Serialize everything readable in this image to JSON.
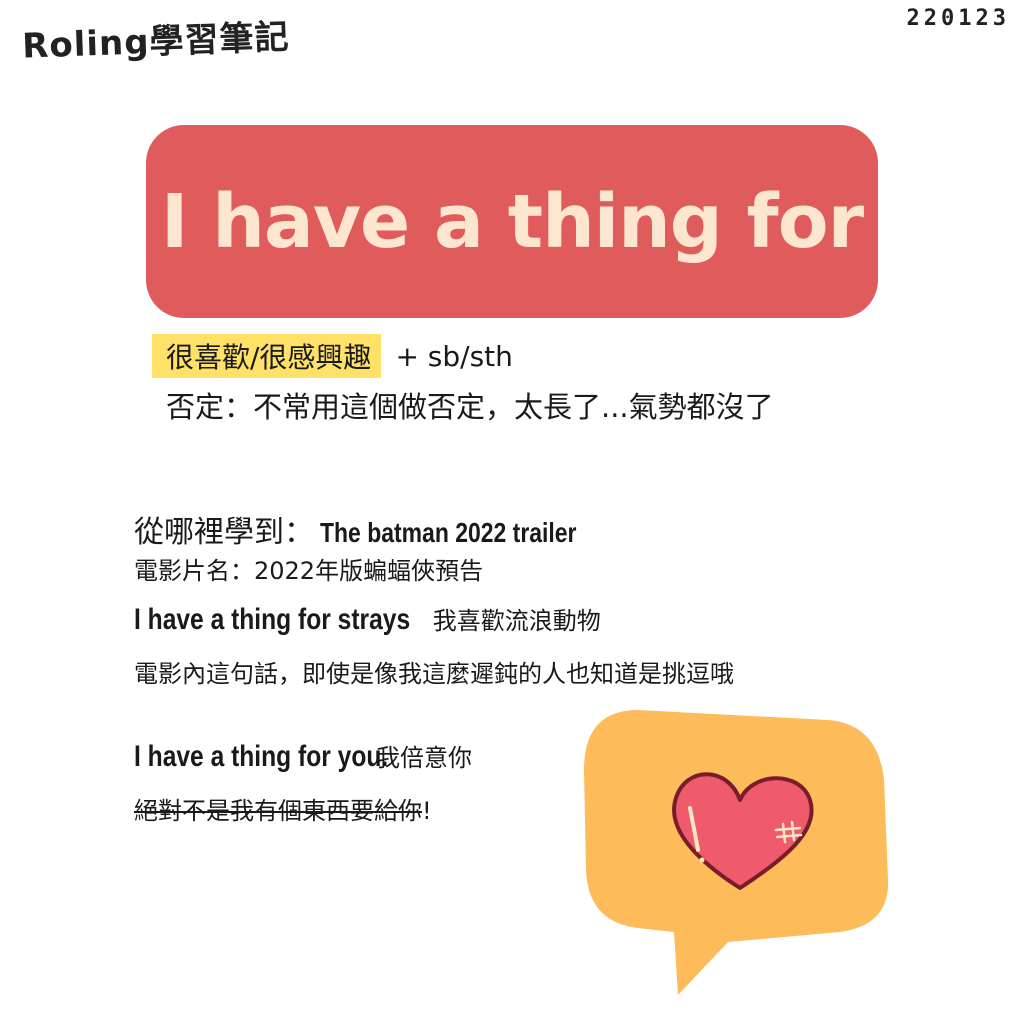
{
  "header": {
    "brand": "Roling學習筆記",
    "date": "220123"
  },
  "title": "I  have a thing for",
  "meaning": {
    "highlight": "很喜歡/很感興趣",
    "plus": "+ sb/sth",
    "negation": "否定：不常用這個做否定，太長了...氣勢都沒了"
  },
  "source": {
    "label": "從哪裡學到：",
    "value": "The batman 2022 trailer",
    "movie_name": "電影片名：2022年版蝙蝠俠預告"
  },
  "examples": [
    {
      "en": "I have a thing for strays",
      "zh": "我喜歡流浪動物"
    },
    {
      "en": "I have a thing for you.",
      "zh": "我倍意你"
    }
  ],
  "note": "電影內這句話，即使是像我這麼遲鈍的人也知道是挑逗哦",
  "not_meaning": {
    "struck": "絕對不是我有個東西要給你",
    "tail": "!"
  },
  "colors": {
    "title_bg": "#e05c5c",
    "title_text": "#fde6cf",
    "highlight": "#fee166",
    "bubble": "#fdbb5a",
    "heart": "#ef5b6b"
  },
  "icons": {
    "decoration": "speech-bubble-heart-icon"
  }
}
